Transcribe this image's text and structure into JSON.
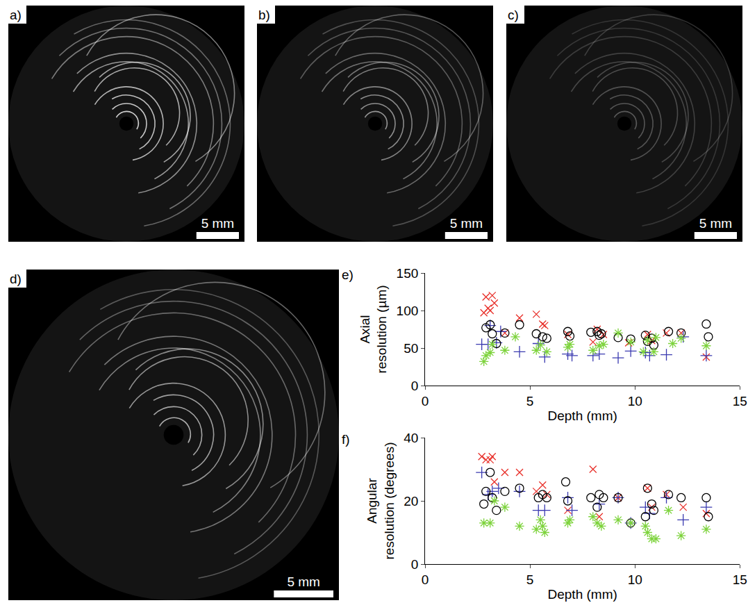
{
  "images": [
    {
      "label": "a)",
      "scale_bar": "5 mm"
    },
    {
      "label": "b)",
      "scale_bar": "5 mm"
    },
    {
      "label": "c)",
      "scale_bar": "5 mm"
    },
    {
      "label": "d)",
      "scale_bar": "5 mm"
    }
  ],
  "chart_data": [
    {
      "type": "scatter",
      "label": "e)",
      "x_label": "Depth (mm)",
      "y_label": "Axial resolution (µm)",
      "xlim": [
        0,
        15
      ],
      "xticks": [
        0,
        5,
        10,
        15
      ],
      "ylim": [
        0,
        150
      ],
      "yticks": [
        0,
        50,
        100,
        150
      ],
      "grid": false,
      "series": [
        {
          "color": "#e8302a",
          "marker": "x",
          "x": [
            2.8,
            2.9,
            3.0,
            3.1,
            3.2,
            3.3,
            3.8,
            4.5,
            5.3,
            5.6,
            5.7,
            6.8,
            8.0,
            8.2,
            8.5,
            9.7,
            10.6,
            10.8,
            11.5,
            12.2,
            13.4
          ],
          "values": [
            97,
            118,
            103,
            100,
            120,
            110,
            70,
            90,
            95,
            82,
            80,
            68,
            58,
            75,
            68,
            57,
            68,
            60,
            70,
            70,
            38
          ]
        },
        {
          "color": "#3a3ab0",
          "marker": "cross",
          "x": [
            2.7,
            3.0,
            3.1,
            3.4,
            3.6,
            4.5,
            5.4,
            5.7,
            6.8,
            7.0,
            8.0,
            8.3,
            9.2,
            9.8,
            10.5,
            10.7,
            11.5,
            12.3,
            13.4
          ],
          "values": [
            55,
            55,
            80,
            57,
            72,
            45,
            56,
            38,
            42,
            40,
            40,
            42,
            37,
            46,
            44,
            40,
            41,
            65,
            40
          ]
        },
        {
          "color": "#000000",
          "marker": "circle",
          "x": [
            2.9,
            3.1,
            3.2,
            3.4,
            3.8,
            4.5,
            5.3,
            5.6,
            5.8,
            6.8,
            6.9,
            7.9,
            8.2,
            8.3,
            8.4,
            9.2,
            9.8,
            10.5,
            10.6,
            10.8,
            10.9,
            11.6,
            12.2,
            13.4,
            13.5
          ],
          "values": [
            77,
            81,
            69,
            56,
            70,
            81,
            69,
            65,
            63,
            72,
            66,
            71,
            72,
            67,
            69,
            64,
            62,
            67,
            59,
            63,
            54,
            72,
            70,
            82,
            65
          ]
        },
        {
          "color": "#7dd33c",
          "marker": "asterisk",
          "x": [
            2.8,
            2.9,
            3.1,
            3.2,
            3.8,
            4.3,
            5.3,
            5.5,
            5.8,
            6.8,
            6.9,
            8.0,
            8.3,
            8.5,
            9.2,
            9.8,
            10.4,
            10.6,
            10.9,
            11.0,
            11.8,
            12.2,
            13.4
          ],
          "values": [
            32,
            40,
            44,
            55,
            47,
            65,
            47,
            54,
            45,
            51,
            55,
            47,
            53,
            55,
            70,
            58,
            45,
            60,
            45,
            64,
            56,
            63,
            53
          ]
        }
      ]
    },
    {
      "type": "scatter",
      "label": "f)",
      "x_label": "Depth (mm)",
      "y_label": "Angular resolution (degrees)",
      "xlim": [
        0,
        15
      ],
      "xticks": [
        0,
        5,
        10,
        15
      ],
      "ylim": [
        0,
        40
      ],
      "yticks": [
        0,
        20,
        40
      ],
      "grid": false,
      "series": [
        {
          "color": "#e8302a",
          "marker": "x",
          "x": [
            2.7,
            2.9,
            3.1,
            3.2,
            3.3,
            3.8,
            4.5,
            5.3,
            5.6,
            5.8,
            6.8,
            8.0,
            8.3,
            9.2,
            10.6,
            10.8,
            11.5,
            12.3,
            13.4
          ],
          "values": [
            34,
            33,
            33,
            34,
            26,
            29,
            29,
            23,
            25,
            22,
            17,
            30,
            15,
            21,
            24,
            18,
            22,
            18,
            16
          ]
        },
        {
          "color": "#3a3ab0",
          "marker": "cross",
          "x": [
            2.7,
            3.0,
            3.2,
            3.5,
            4.5,
            5.4,
            5.7,
            6.8,
            7.0,
            8.3,
            9.2,
            9.8,
            10.5,
            10.7,
            11.5,
            12.3,
            13.4
          ],
          "values": [
            29,
            22,
            23,
            24,
            23,
            17,
            17,
            21,
            17,
            19,
            21,
            13,
            18,
            16,
            21,
            14,
            18
          ]
        },
        {
          "color": "#000000",
          "marker": "circle",
          "x": [
            2.8,
            2.9,
            3.1,
            3.2,
            3.4,
            3.8,
            4.5,
            5.4,
            5.6,
            5.8,
            6.7,
            6.8,
            7.9,
            8.2,
            8.3,
            8.5,
            9.2,
            9.8,
            10.5,
            10.6,
            10.8,
            10.9,
            11.6,
            12.2,
            13.4,
            13.5
          ],
          "values": [
            19,
            23,
            29,
            21,
            17,
            23,
            24,
            21,
            22,
            21,
            26,
            20,
            21,
            18,
            22,
            21,
            21,
            13,
            15,
            24,
            19,
            17,
            22,
            21,
            21,
            15
          ]
        },
        {
          "color": "#7dd33c",
          "marker": "asterisk",
          "x": [
            2.8,
            3.1,
            3.3,
            3.8,
            4.5,
            5.3,
            5.5,
            5.6,
            5.7,
            6.8,
            6.9,
            8.0,
            8.2,
            8.4,
            9.2,
            9.8,
            10.5,
            10.6,
            10.8,
            11.0,
            11.6,
            12.2,
            13.4
          ],
          "values": [
            13,
            13,
            20,
            18,
            12,
            11,
            14,
            12,
            10,
            13,
            14,
            15,
            13,
            12,
            14,
            13,
            12,
            10,
            8,
            8,
            17,
            9,
            11
          ]
        }
      ]
    }
  ]
}
